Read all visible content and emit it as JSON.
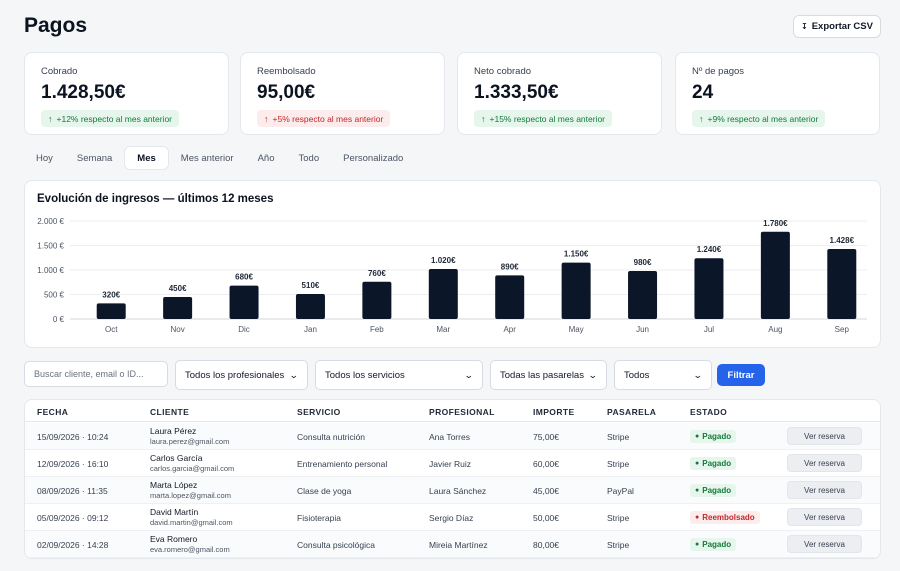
{
  "header": {
    "title": "Pagos",
    "export_label": "Exportar CSV",
    "export_icon": "download-icon"
  },
  "kpis": [
    {
      "label": "Cobrado",
      "value": "1.428,50€",
      "delta": "+12% respecto al mes anterior",
      "trend": "up",
      "tone": "positive"
    },
    {
      "label": "Reembolsado",
      "value": "95,00€",
      "delta": "+5% respecto al mes anterior",
      "trend": "up",
      "tone": "negative"
    },
    {
      "label": "Neto cobrado",
      "value": "1.333,50€",
      "delta": "+15% respecto al mes anterior",
      "trend": "up",
      "tone": "positive"
    },
    {
      "label": "Nº de pagos",
      "value": "24",
      "delta": "+9% respecto al mes anterior",
      "trend": "up",
      "tone": "positive"
    }
  ],
  "period_tabs": [
    {
      "label": "Hoy",
      "active": false
    },
    {
      "label": "Semana",
      "active": false
    },
    {
      "label": "Mes",
      "active": true
    },
    {
      "label": "Mes anterior",
      "active": false
    },
    {
      "label": "Año",
      "active": false
    },
    {
      "label": "Todo",
      "active": false
    },
    {
      "label": "Personalizado",
      "active": false
    }
  ],
  "chart_data": {
    "type": "bar",
    "title": "Evolución de ingresos — últimos 12 meses",
    "categories": [
      "Oct",
      "Nov",
      "Dic",
      "Jan",
      "Feb",
      "Mar",
      "Apr",
      "May",
      "Jun",
      "Jul",
      "Aug",
      "Sep"
    ],
    "values": [
      320,
      450,
      680,
      510,
      760,
      1020,
      890,
      1150,
      980,
      1240,
      1780,
      1428
    ],
    "data_labels": [
      "320€",
      "450€",
      "680€",
      "510€",
      "760€",
      "1.020€",
      "890€",
      "1.150€",
      "980€",
      "1.240€",
      "1.780€",
      "1.428€"
    ],
    "yticks": [
      0,
      500,
      1000,
      1500,
      2000
    ],
    "ytick_labels": [
      "0 €",
      "500 €",
      "1.000 €",
      "1.500 €",
      "2.000 €"
    ],
    "ylim": [
      0,
      2000
    ],
    "xlabel": "",
    "ylabel": "",
    "grid": true,
    "bar_color": "#0b1629"
  },
  "filters": {
    "search_placeholder": "Buscar cliente, email o ID...",
    "professionals": "Todos los profesionales",
    "services": "Todos los servicios",
    "gateways": "Todas las pasarelas",
    "status": "Todos",
    "filter_label": "Filtrar"
  },
  "table": {
    "columns": [
      "FECHA",
      "CLIENTE",
      "SERVICIO",
      "PROFESIONAL",
      "IMPORTE",
      "PASARELA",
      "ESTADO"
    ],
    "view_label": "Ver reserva",
    "rows": [
      {
        "date": "15/09/2026 · 10:24",
        "client": "Laura Pérez",
        "email": "laura.perez@gmail.com",
        "service": "Consulta nutrición",
        "professional": "Ana Torres",
        "amount": "75,00€",
        "gateway": "Stripe",
        "status": "Pagado",
        "status_tone": "paid"
      },
      {
        "date": "12/09/2026 · 16:10",
        "client": "Carlos García",
        "email": "carlos.garcia@gmail.com",
        "service": "Entrenamiento personal",
        "professional": "Javier Ruiz",
        "amount": "60,00€",
        "gateway": "Stripe",
        "status": "Pagado",
        "status_tone": "paid"
      },
      {
        "date": "08/09/2026 · 11:35",
        "client": "Marta López",
        "email": "marta.lopez@gmail.com",
        "service": "Clase de yoga",
        "professional": "Laura Sánchez",
        "amount": "45,00€",
        "gateway": "PayPal",
        "status": "Pagado",
        "status_tone": "paid"
      },
      {
        "date": "05/09/2026 · 09:12",
        "client": "David Martín",
        "email": "david.martin@gmail.com",
        "service": "Fisioterapia",
        "professional": "Sergio Díaz",
        "amount": "50,00€",
        "gateway": "Stripe",
        "status": "Reembolsado",
        "status_tone": "refund"
      },
      {
        "date": "02/09/2026 · 14:28",
        "client": "Eva Romero",
        "email": "eva.romero@gmail.com",
        "service": "Consulta psicológica",
        "professional": "Mireia Martínez",
        "amount": "80,00€",
        "gateway": "Stripe",
        "status": "Pagado",
        "status_tone": "paid"
      }
    ]
  }
}
